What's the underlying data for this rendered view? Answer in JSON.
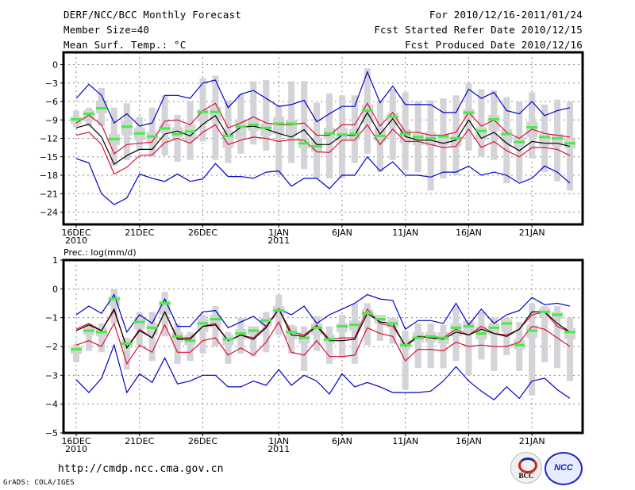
{
  "header": {
    "title": "DERF/NCC/BCC Monthly Forecast",
    "member_size": "Member Size=40",
    "variable": "Mean Surf. Temp.: °C",
    "period": "For 2010/12/16-2011/01/24",
    "start_date": "Fcst Started Refer Date 2010/12/15",
    "produced_date": "Fcst Produced Date 2010/12/16"
  },
  "footer": {
    "url": "http://cmdp.ncc.cma.gov.cn",
    "credit": "GrADS: COLA/IGES",
    "logos": [
      "BCC",
      "NCC"
    ]
  },
  "colors": {
    "extreme": "#0000cc",
    "spread": "#dd1133",
    "mean": "#000000",
    "median": "#44ee44",
    "box": "#d3d3d8"
  },
  "chart_data": [
    {
      "type": "line",
      "title": "Mean Surf. Temp.: °C",
      "xlabel": "",
      "ylabel": "",
      "ylim": [
        -26,
        2
      ],
      "yticks": [
        0,
        -3,
        -6,
        -9,
        -12,
        -15,
        -18,
        -21,
        -24
      ],
      "ytick_labels": [
        "0",
        "-3",
        "-6",
        "-9",
        "-12",
        "-15",
        "-18",
        "-21",
        "-24"
      ],
      "xtick_days": [
        0,
        5,
        10,
        16,
        21,
        26,
        31,
        36
      ],
      "xtick_labels": [
        "16DEC",
        "21DEC",
        "26DEC",
        "1JAN",
        "6JAN",
        "11JAN",
        "16JAN",
        "21JAN"
      ],
      "xtick_sublabels": [
        "2010",
        "",
        "",
        "2011",
        "",
        "",
        "",
        ""
      ],
      "grid": true,
      "x": [
        0,
        1,
        2,
        3,
        4,
        5,
        6,
        7,
        8,
        9,
        10,
        11,
        12,
        13,
        14,
        15,
        16,
        17,
        18,
        19,
        20,
        21,
        22,
        23,
        24,
        25,
        26,
        27,
        28,
        29,
        30,
        31,
        32,
        33,
        34,
        35,
        36,
        37,
        38,
        39
      ],
      "series": [
        {
          "name": "max",
          "values": [
            -5.5,
            -3.2,
            -5,
            -9.5,
            -8,
            -10,
            -9.5,
            -5,
            -5,
            -5.5,
            -3,
            -2.5,
            -7,
            -4.8,
            -4.2,
            -5.5,
            -6.8,
            -6.5,
            -5.8,
            -9.3,
            -8,
            -6.8,
            -6.8,
            -1.2,
            -6.2,
            -3.5,
            -6.5,
            -6.5,
            -6.5,
            -7.8,
            -7.8,
            -4,
            -5.5,
            -4.5,
            -7.5,
            -8,
            -6,
            -8.3,
            -7.5,
            -7
          ]
        },
        {
          "name": "upper",
          "values": [
            -9.5,
            -8.2,
            -9.8,
            -14.5,
            -13,
            -12.8,
            -12.6,
            -9.2,
            -9,
            -9.8,
            -7.5,
            -6.3,
            -10.3,
            -9.5,
            -8.5,
            -9.5,
            -9.8,
            -9.8,
            -9.5,
            -11.5,
            -11.5,
            -9.8,
            -9.8,
            -6.3,
            -10,
            -7.8,
            -11,
            -11,
            -11.5,
            -11.5,
            -11,
            -7.8,
            -10,
            -9,
            -11,
            -12,
            -10.5,
            -11.2,
            -11.5,
            -11.8
          ]
        },
        {
          "name": "mean",
          "values": [
            -10.3,
            -9.7,
            -11.8,
            -16.2,
            -14.8,
            -13.8,
            -13.8,
            -11.3,
            -10.8,
            -11.6,
            -9.7,
            -8.3,
            -11.7,
            -10.2,
            -10,
            -10.5,
            -11.2,
            -11.8,
            -10.6,
            -13,
            -13,
            -11.5,
            -11.5,
            -7.8,
            -11.3,
            -8.8,
            -11.7,
            -12.3,
            -12.3,
            -12.8,
            -12.3,
            -9,
            -12,
            -11,
            -12.8,
            -14,
            -12.5,
            -12.8,
            -12.8,
            -13.3
          ]
        },
        {
          "name": "lower",
          "values": [
            -11.5,
            -11,
            -13,
            -17.8,
            -16.7,
            -14.8,
            -14.7,
            -12.7,
            -12,
            -12.8,
            -11,
            -9.8,
            -13,
            -12.3,
            -11.8,
            -12,
            -12.5,
            -12.2,
            -12.3,
            -14.2,
            -14.3,
            -12.3,
            -12.3,
            -9.8,
            -13,
            -10.5,
            -12.5,
            -12.5,
            -13,
            -13.5,
            -13.3,
            -10.5,
            -13.5,
            -12.5,
            -14,
            -15,
            -13.5,
            -13.5,
            -13.8,
            -14.8
          ]
        },
        {
          "name": "min",
          "values": [
            -15.3,
            -16,
            -21,
            -22.8,
            -21.7,
            -17.8,
            -18.5,
            -19,
            -17.8,
            -19,
            -18.6,
            -16.1,
            -18.2,
            -18.2,
            -18.5,
            -17.5,
            -17.3,
            -19.8,
            -18.5,
            -18.5,
            -20.2,
            -18,
            -18,
            -15,
            -17.3,
            -15.8,
            -18,
            -18,
            -18.3,
            -17.5,
            -17.5,
            -16.5,
            -18,
            -17.5,
            -18,
            -19.3,
            -18.5,
            -16.5,
            -17.5,
            -19.3
          ]
        },
        {
          "name": "median",
          "values": [
            -8.9,
            -8,
            -7.1,
            -12.1,
            -10.1,
            -11.2,
            -11.7,
            -10.4,
            -11.3,
            -10.9,
            -7.7,
            -7.7,
            -11.6,
            -10.1,
            -9.8,
            -10.3,
            -9.6,
            -9.6,
            -12.8,
            -13.3,
            -11.2,
            -11.4,
            -11.3,
            -7.5,
            -11.6,
            -8.5,
            -11.3,
            -11.8,
            -12,
            -11.7,
            -12,
            -7.8,
            -10.8,
            -8.9,
            -11.3,
            -12.6,
            -10.2,
            -11.8,
            -12,
            -12.8
          ]
        },
        {
          "name": "box_q3",
          "values": [
            -8.5,
            -7.4,
            -5.8,
            -11.3,
            -9.2,
            -10.3,
            -11,
            -9.6,
            -10.2,
            -9.8,
            -7.3,
            -6.9,
            -10.8,
            -9,
            -8.8,
            -9.5,
            -8.5,
            -9,
            -12,
            -12,
            -10.3,
            -10.3,
            -10.5,
            -6.5,
            -10.4,
            -7.8,
            -10.5,
            -11.2,
            -11,
            -11.3,
            -11.5,
            -7.2,
            -10.2,
            -8.2,
            -10.5,
            -11.8,
            -9.3,
            -11.3,
            -11.3,
            -12
          ]
        },
        {
          "name": "box_q1",
          "values": [
            -9.7,
            -9.2,
            -7.9,
            -13.1,
            -11.5,
            -12.3,
            -12.7,
            -11,
            -11.9,
            -12.4,
            -9.2,
            -9,
            -13.5,
            -11.9,
            -10.8,
            -11.6,
            -11.3,
            -11.6,
            -13.6,
            -14.2,
            -12.1,
            -12.4,
            -12.2,
            -9.5,
            -12.5,
            -9.9,
            -12.8,
            -13.1,
            -13.2,
            -13.1,
            -13.3,
            -8.7,
            -12.3,
            -10.8,
            -12.8,
            -13.6,
            -11.8,
            -13.2,
            -13.3,
            -13.7
          ]
        },
        {
          "name": "box_top",
          "values": [
            -7.5,
            -7,
            -3.8,
            -7,
            -6.3,
            -8.5,
            -7,
            -5,
            -8.2,
            -6,
            -2.2,
            -1.8,
            -5.8,
            -4.8,
            -2.7,
            -2.5,
            -6.7,
            -2.7,
            -2.7,
            -6.2,
            -4.7,
            -5,
            -5,
            -0.6,
            -6,
            -4,
            -4.5,
            -6,
            -5.8,
            -5.5,
            -5,
            -3,
            -4,
            -4.2,
            -5.3,
            -6,
            -4.5,
            -6.5,
            -5.7,
            -6
          ]
        },
        {
          "name": "box_bottom",
          "values": [
            -10.2,
            -10,
            -10,
            -16.5,
            -15.5,
            -14,
            -15,
            -14.8,
            -15.8,
            -15.5,
            -12.5,
            -15.5,
            -16,
            -14.5,
            -13,
            -14,
            -18,
            -16,
            -17,
            -18.5,
            -18.5,
            -18.5,
            -16,
            -14.5,
            -17.5,
            -15.5,
            -17.2,
            -17.5,
            -20.5,
            -18.5,
            -18,
            -14,
            -15,
            -15.5,
            -19.3,
            -19,
            -15.3,
            -17.5,
            -19,
            -20.5
          ]
        }
      ]
    },
    {
      "type": "line",
      "title": "Prec.: log(mm/d)",
      "xlabel": "",
      "ylabel": "",
      "ylim": [
        -5,
        1
      ],
      "yticks": [
        1,
        0,
        -1,
        -2,
        -3,
        -4,
        -5
      ],
      "ytick_labels": [
        "1",
        "0",
        "-1",
        "-2",
        "-3",
        "-4",
        "-5"
      ],
      "xtick_days": [
        0,
        5,
        10,
        16,
        21,
        26,
        31,
        36
      ],
      "xtick_labels": [
        "16DEC",
        "21DEC",
        "26DEC",
        "1JAN",
        "6JAN",
        "11JAN",
        "16JAN",
        "21JAN"
      ],
      "xtick_sublabels": [
        "2010",
        "",
        "",
        "2011",
        "",
        "",
        "",
        ""
      ],
      "grid": true,
      "x": [
        0,
        1,
        2,
        3,
        4,
        5,
        6,
        7,
        8,
        9,
        10,
        11,
        12,
        13,
        14,
        15,
        16,
        17,
        18,
        19,
        20,
        21,
        22,
        23,
        24,
        25,
        26,
        27,
        28,
        29,
        30,
        31,
        32,
        33,
        34,
        35,
        36,
        37,
        38,
        39
      ],
      "series": [
        {
          "name": "max",
          "values": [
            -0.9,
            -0.6,
            -0.85,
            -0.2,
            -1.5,
            -0.9,
            -1.2,
            -0.35,
            -1.3,
            -1.3,
            -0.8,
            -0.75,
            -1.35,
            -1.15,
            -0.95,
            -1.3,
            -0.7,
            -0.9,
            -0.6,
            -1.2,
            -0.9,
            -0.7,
            -0.5,
            -0.2,
            -0.35,
            -0.4,
            -1.4,
            -1.1,
            -1.1,
            -1.2,
            -0.5,
            -1.25,
            -0.7,
            -1.2,
            -0.9,
            -0.75,
            -0.3,
            -0.55,
            -0.5,
            -0.6
          ]
        },
        {
          "name": "upper",
          "values": [
            -1.4,
            -1.2,
            -1.45,
            -0.75,
            -2.05,
            -1.4,
            -1.7,
            -0.8,
            -1.7,
            -1.7,
            -1.3,
            -1.2,
            -1.8,
            -1.6,
            -1.7,
            -1.3,
            -0.7,
            -1.5,
            -1.6,
            -1.25,
            -1.75,
            -1.7,
            -1.7,
            -0.7,
            -1.2,
            -1.3,
            -1.95,
            -1.65,
            -1.65,
            -1.7,
            -1.4,
            -1.6,
            -1.3,
            -1.55,
            -1.6,
            -1.4,
            -0.9,
            -0.8,
            -1.3,
            -1.5
          ]
        },
        {
          "name": "mean",
          "values": [
            -1.45,
            -1.25,
            -1.45,
            -0.7,
            -2.05,
            -1.45,
            -1.7,
            -0.8,
            -1.75,
            -1.75,
            -1.3,
            -1.25,
            -1.8,
            -1.6,
            -1.75,
            -1.35,
            -0.7,
            -1.6,
            -1.65,
            -1.3,
            -1.8,
            -1.8,
            -1.75,
            -0.85,
            -1.15,
            -1.2,
            -2.0,
            -1.65,
            -1.7,
            -1.75,
            -1.5,
            -1.6,
            -1.4,
            -1.55,
            -1.65,
            -1.4,
            -0.8,
            -0.8,
            -1.2,
            -1.5
          ]
        },
        {
          "name": "lower",
          "values": [
            -1.95,
            -1.8,
            -2.0,
            -1.2,
            -2.6,
            -1.95,
            -2.2,
            -1.25,
            -2.2,
            -2.2,
            -1.8,
            -1.7,
            -2.3,
            -2.05,
            -2.3,
            -1.85,
            -1.15,
            -2.2,
            -2.3,
            -1.8,
            -2.35,
            -2.35,
            -2.3,
            -1.35,
            -1.55,
            -1.65,
            -2.5,
            -2.1,
            -2.1,
            -2.15,
            -1.85,
            -2.0,
            -1.95,
            -2.0,
            -2.0,
            -1.85,
            -1.3,
            -1.4,
            -1.7,
            -2.0
          ]
        },
        {
          "name": "min",
          "values": [
            -3.15,
            -3.6,
            -3.1,
            -1.95,
            -3.6,
            -2.95,
            -3.25,
            -2.4,
            -3.3,
            -3.2,
            -3.0,
            -3.0,
            -3.4,
            -3.4,
            -3.2,
            -3.35,
            -2.8,
            -3.35,
            -3.0,
            -3.2,
            -3.65,
            -2.95,
            -3.4,
            -3.25,
            -3.4,
            -3.6,
            -3.6,
            -3.6,
            -3.55,
            -3.2,
            -2.7,
            -3.2,
            -3.55,
            -3.85,
            -3.4,
            -3.8,
            -3.2,
            -3.1,
            -3.5,
            -3.8
          ]
        },
        {
          "name": "median",
          "values": [
            -2.1,
            -1.45,
            -1.5,
            -0.35,
            -1.9,
            -1.15,
            -1.35,
            -0.5,
            -1.65,
            -1.8,
            -1.2,
            -1.05,
            -1.75,
            -1.55,
            -1.45,
            -1.1,
            -0.75,
            -1.5,
            -1.7,
            -1.35,
            -1.75,
            -1.3,
            -1.25,
            -0.85,
            -1.05,
            -1.2,
            -1.95,
            -1.7,
            -1.65,
            -1.7,
            -1.35,
            -1.3,
            -1.55,
            -1.35,
            -1.2,
            -1.95,
            -1.45,
            -0.8,
            -0.9,
            -1.5
          ]
        },
        {
          "name": "box_q3",
          "values": [
            -2.0,
            -1.3,
            -1.35,
            -0.25,
            -1.75,
            -1.0,
            -1.2,
            -0.4,
            -1.5,
            -1.6,
            -1.05,
            -0.9,
            -1.6,
            -1.4,
            -1.3,
            -1.0,
            -0.6,
            -1.3,
            -1.5,
            -1.2,
            -1.6,
            -1.2,
            -1.1,
            -0.7,
            -0.9,
            -1.05,
            -1.75,
            -1.5,
            -1.5,
            -1.5,
            -1.2,
            -1.1,
            -1.3,
            -1.2,
            -1.05,
            -1.75,
            -1.25,
            -0.65,
            -0.8,
            -1.35
          ]
        },
        {
          "name": "box_q1",
          "values": [
            -2.25,
            -1.6,
            -1.65,
            -0.6,
            -2.05,
            -1.4,
            -1.6,
            -0.9,
            -1.85,
            -1.95,
            -1.5,
            -1.35,
            -1.95,
            -1.75,
            -1.6,
            -1.3,
            -0.95,
            -1.75,
            -1.9,
            -1.6,
            -1.9,
            -1.5,
            -1.45,
            -1.0,
            -1.2,
            -1.35,
            -2.1,
            -1.85,
            -1.85,
            -1.9,
            -1.65,
            -1.5,
            -1.75,
            -1.6,
            -1.5,
            -2.1,
            -1.7,
            -1.0,
            -1.05,
            -1.75
          ]
        },
        {
          "name": "box_top",
          "values": [
            -1.9,
            -1.2,
            -1.2,
            0.0,
            -1.7,
            -0.8,
            -0.8,
            -0.1,
            -1.2,
            -1.5,
            -0.9,
            -0.6,
            -1.5,
            -1.0,
            -1.3,
            -0.8,
            -0.2,
            -1.25,
            -1.3,
            -0.95,
            -1.3,
            -0.9,
            -0.5,
            -0.5,
            -1.0,
            -1.0,
            -1.45,
            -1.2,
            -1.2,
            -1.25,
            -0.6,
            -1.1,
            -0.8,
            -1.0,
            -1.0,
            -1.15,
            -0.5,
            -0.6,
            -0.6,
            -1.0
          ]
        },
        {
          "name": "box_bottom",
          "values": [
            -2.55,
            -2.15,
            -2.2,
            -1.2,
            -2.8,
            -1.95,
            -2.5,
            -1.65,
            -2.6,
            -2.5,
            -2.25,
            -2.0,
            -2.6,
            -2.25,
            -2.35,
            -2.2,
            -1.6,
            -2.25,
            -2.85,
            -2.15,
            -2.6,
            -2.4,
            -2.6,
            -1.95,
            -1.8,
            -1.9,
            -3.5,
            -2.75,
            -2.75,
            -2.75,
            -2.5,
            -3.0,
            -2.45,
            -2.85,
            -2.3,
            -2.85,
            -3.7,
            -2.55,
            -2.75,
            -3.2
          ]
        }
      ]
    }
  ]
}
